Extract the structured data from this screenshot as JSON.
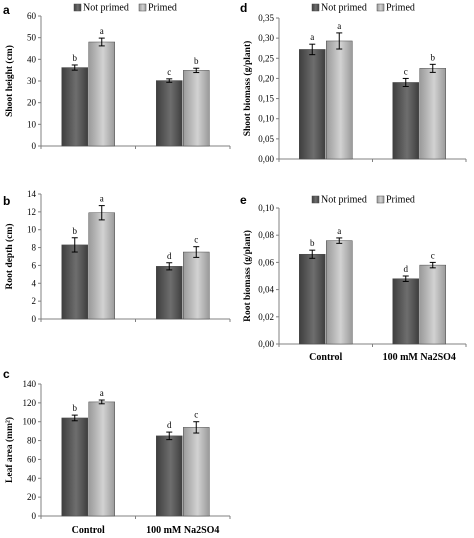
{
  "colors": {
    "not_primed": "#5a5a5a",
    "primed": "#b4b4b4",
    "axis": "#808080"
  },
  "chart_data": [
    {
      "id": "a",
      "type": "bar",
      "panel": "a",
      "ylabel": "Shoot height (cm)",
      "ylim": [
        0,
        60
      ],
      "yticks": [
        "0",
        "10",
        "20",
        "30",
        "40",
        "50",
        "60"
      ],
      "categories": [
        "",
        ""
      ],
      "legend": {
        "entries": [
          "Not primed",
          "Primed"
        ],
        "placement": "top"
      },
      "series": [
        {
          "name": "Not primed",
          "values": [
            36.2,
            30.2
          ],
          "errors": [
            1.2,
            0.8
          ],
          "letters": [
            "b",
            "c"
          ]
        },
        {
          "name": "Primed",
          "values": [
            48.0,
            34.9
          ],
          "errors": [
            1.8,
            1.0
          ],
          "letters": [
            "a",
            "b"
          ]
        }
      ]
    },
    {
      "id": "b",
      "type": "bar",
      "panel": "b",
      "ylabel": "Root depth (cm)",
      "ylim": [
        0,
        14
      ],
      "yticks": [
        "0",
        "2",
        "4",
        "6",
        "8",
        "10",
        "12",
        "14"
      ],
      "categories": [
        "",
        ""
      ],
      "series": [
        {
          "values": [
            8.3,
            5.9
          ],
          "errors": [
            0.8,
            0.4
          ],
          "letters": [
            "b",
            "d"
          ]
        },
        {
          "values": [
            11.9,
            7.5
          ],
          "errors": [
            0.8,
            0.6
          ],
          "letters": [
            "a",
            "c"
          ]
        }
      ]
    },
    {
      "id": "c",
      "type": "bar",
      "panel": "c",
      "ylabel": "Leaf area (mm²)",
      "ylim": [
        0,
        140
      ],
      "yticks": [
        "0",
        "20",
        "40",
        "60",
        "80",
        "100",
        "120",
        "140"
      ],
      "categories": [
        "Control",
        "100 mM Na2SO4"
      ],
      "series": [
        {
          "values": [
            104,
            85
          ],
          "errors": [
            3,
            4
          ],
          "letters": [
            "b",
            "d"
          ]
        },
        {
          "values": [
            121,
            94
          ],
          "errors": [
            2,
            6
          ],
          "letters": [
            "a",
            "c"
          ]
        }
      ]
    },
    {
      "id": "d",
      "type": "bar",
      "panel": "d",
      "ylabel": "Shoot biomass (g/plant)",
      "ylim": [
        0,
        0.35
      ],
      "yticks": [
        "0,00",
        "0,05",
        "0,10",
        "0,15",
        "0,20",
        "0,25",
        "0,30",
        "0,35"
      ],
      "categories": [
        "",
        ""
      ],
      "legend": {
        "entries": [
          "Not primed",
          "Primed"
        ],
        "placement": "top"
      },
      "series": [
        {
          "name": "Not primed",
          "values": [
            0.272,
            0.19
          ],
          "errors": [
            0.013,
            0.01
          ],
          "letters": [
            "a",
            "c"
          ]
        },
        {
          "name": "Primed",
          "values": [
            0.293,
            0.225
          ],
          "errors": [
            0.02,
            0.01
          ],
          "letters": [
            "a",
            "b"
          ]
        }
      ]
    },
    {
      "id": "e",
      "type": "bar",
      "panel": "e",
      "ylabel": "Root biomass (g/plant)",
      "ylim": [
        0,
        0.1
      ],
      "yticks": [
        "0,00",
        "0,02",
        "0,04",
        "0,06",
        "0,08",
        "0,10"
      ],
      "categories": [
        "Control",
        "100 mM Na2SO4"
      ],
      "legend": {
        "entries": [
          "Not primed",
          "Primed"
        ],
        "placement": "top"
      },
      "series": [
        {
          "name": "Not primed",
          "values": [
            0.066,
            0.048
          ],
          "errors": [
            0.003,
            0.002
          ],
          "letters": [
            "b",
            "d"
          ]
        },
        {
          "name": "Primed",
          "values": [
            0.076,
            0.058
          ],
          "errors": [
            0.002,
            0.002
          ],
          "letters": [
            "a",
            "c"
          ]
        }
      ]
    }
  ]
}
